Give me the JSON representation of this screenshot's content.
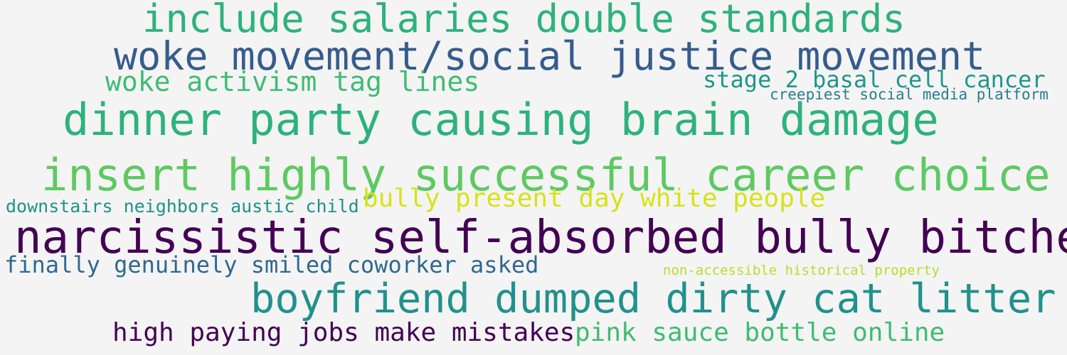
{
  "background": "#f4f4f4",
  "phrases": [
    {
      "text": "include salaries double standards",
      "color": "#2db27d"
    },
    {
      "text": "woke movement/social justice movement",
      "color": "#365c8d"
    },
    {
      "text": "woke activism tag lines",
      "color": "#3fbc73"
    },
    {
      "text": "stage 2 basal cell cancer",
      "color": "#1f968b"
    },
    {
      "text": "creepiest social media platform",
      "color": "#287d8e"
    },
    {
      "text": "dinner party causing brain damage",
      "color": "#2db27d"
    },
    {
      "text": "insert highly successful career choice",
      "color": "#5ec962"
    },
    {
      "text": "bully present day white people",
      "color": "#d8e219"
    },
    {
      "text": "downstairs neighbors austic child",
      "color": "#21918c"
    },
    {
      "text": "narcissistic self-absorbed bully bitches",
      "color": "#440154"
    },
    {
      "text": "finally genuinely smiled coworker asked",
      "color": "#31688e"
    },
    {
      "text": "non-accessible historical property",
      "color": "#b5de2b"
    },
    {
      "text": "boyfriend dumped dirty cat litter",
      "color": "#21918c"
    },
    {
      "text": "high paying jobs make mistakes",
      "color": "#440154"
    },
    {
      "text": "pink sauce bottle online",
      "color": "#3fbc73"
    }
  ]
}
